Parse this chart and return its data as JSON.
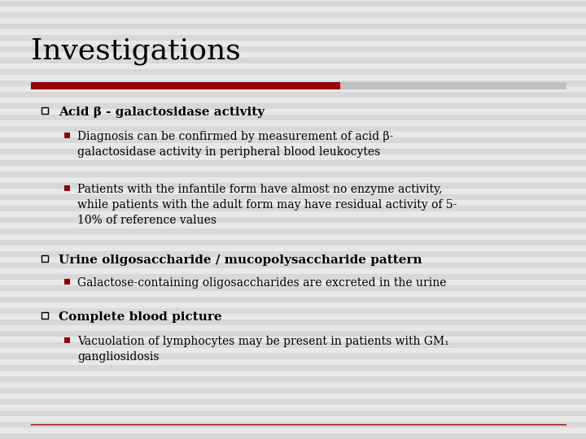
{
  "title": "Investigations",
  "bg_color": "#e8e8e8",
  "stripe_color": "#d8d8d8",
  "title_color": "#000000",
  "title_fontsize": 26,
  "bar_color_left": "#9b0000",
  "bar_color_right": "#c0c0c0",
  "separator_color": "#9b0000",
  "bullet1_bold": "Acid β - galactosidase activity",
  "bullet1_sub1": "Diagnosis can be confirmed by measurement of acid β-\ngalactosidase activity in peripheral blood leukocytes",
  "bullet1_sub2": "Patients with the infantile form have almost no enzyme activity,\nwhile patients with the adult form may have residual activity of 5-\n10% of reference values",
  "bullet2_bold": "Urine oligosaccharide / mucopolysaccharide pattern",
  "bullet2_sub1": "Galactose-containing oligosaccharides are excreted in the urine",
  "bullet3_bold": "Complete blood picture",
  "bullet3_sub1": "Vacuolation of lymphocytes may be present in patients with GM₁\ngangliosidosis",
  "text_color": "#000000",
  "bullet_color_outer": "#000000",
  "bullet_color_inner": "#8b0000",
  "body_fontsize": 10,
  "bold_fontsize": 11
}
